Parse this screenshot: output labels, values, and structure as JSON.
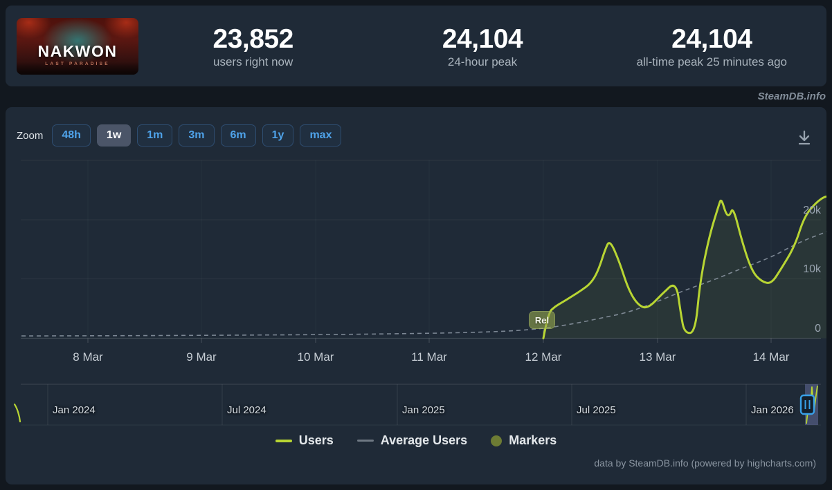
{
  "header": {
    "banner": {
      "title": "NAKWON",
      "subtitle": "LAST PARADISE"
    },
    "stats": [
      {
        "value": "23,852",
        "label": "users right now"
      },
      {
        "value": "24,104",
        "label": "24-hour peak"
      },
      {
        "value": "24,104",
        "label": "all-time peak 25 minutes ago"
      }
    ]
  },
  "watermark": "SteamDB.info",
  "toolbar": {
    "zoom_label": "Zoom",
    "buttons": [
      {
        "label": "48h",
        "active": false
      },
      {
        "label": "1w",
        "active": true
      },
      {
        "label": "1m",
        "active": false
      },
      {
        "label": "3m",
        "active": false
      },
      {
        "label": "6m",
        "active": false
      },
      {
        "label": "1y",
        "active": false
      },
      {
        "label": "max",
        "active": false
      }
    ]
  },
  "chart_data": {
    "type": "line",
    "y_ticks": [
      "0",
      "10k",
      "20k"
    ],
    "ylim": [
      0,
      30000
    ],
    "x_ticks": [
      "8 Mar",
      "9 Mar",
      "10 Mar",
      "11 Mar",
      "12 Mar",
      "13 Mar",
      "14 Mar"
    ],
    "grid": true,
    "legend_position": "bottom",
    "series": [
      {
        "name": "Users",
        "color": "#b8d533",
        "style": "solid",
        "points": [
          {
            "t": "12 Mar 00:00",
            "v": 0
          },
          {
            "t": "12 Mar 01:00",
            "v": 4300
          },
          {
            "t": "12 Mar 02:30",
            "v": 5400
          },
          {
            "t": "12 Mar 04:00",
            "v": 6100
          },
          {
            "t": "12 Mar 06:00",
            "v": 7100
          },
          {
            "t": "12 Mar 08:00",
            "v": 8100
          },
          {
            "t": "12 Mar 10:00",
            "v": 9300
          },
          {
            "t": "12 Mar 11:30",
            "v": 11300
          },
          {
            "t": "12 Mar 13:00",
            "v": 15000
          },
          {
            "t": "12 Mar 14:00",
            "v": 16700
          },
          {
            "t": "12 Mar 16:00",
            "v": 13000
          },
          {
            "t": "12 Mar 18:00",
            "v": 8100
          },
          {
            "t": "12 Mar 20:00",
            "v": 5600
          },
          {
            "t": "12 Mar 22:00",
            "v": 5000
          },
          {
            "t": "13 Mar 01:00",
            "v": 7500
          },
          {
            "t": "13 Mar 04:00",
            "v": 9700
          },
          {
            "t": "13 Mar 05:00",
            "v": 4000
          },
          {
            "t": "13 Mar 05:45",
            "v": 900
          },
          {
            "t": "13 Mar 08:00",
            "v": 900
          },
          {
            "t": "13 Mar 09:00",
            "v": 9500
          },
          {
            "t": "13 Mar 11:00",
            "v": 17400
          },
          {
            "t": "13 Mar 13:00",
            "v": 22600
          },
          {
            "t": "13 Mar 13:30",
            "v": 23700
          },
          {
            "t": "13 Mar 14:30",
            "v": 21000
          },
          {
            "t": "13 Mar 15:15",
            "v": 20700
          },
          {
            "t": "13 Mar 16:00",
            "v": 22300
          },
          {
            "t": "13 Mar 18:00",
            "v": 16000
          },
          {
            "t": "13 Mar 20:00",
            "v": 11300
          },
          {
            "t": "13 Mar 22:00",
            "v": 9600
          },
          {
            "t": "14 Mar 00:00",
            "v": 9200
          },
          {
            "t": "14 Mar 02:00",
            "v": 11600
          },
          {
            "t": "14 Mar 05:00",
            "v": 15600
          },
          {
            "t": "14 Mar 07:00",
            "v": 20600
          },
          {
            "t": "14 Mar 09:30",
            "v": 23000
          },
          {
            "t": "14 Mar 11:30",
            "v": 24104
          },
          {
            "t": "14 Mar 12:40",
            "v": 23852
          }
        ]
      },
      {
        "name": "Average Users",
        "color": "#8d98a4",
        "style": "dashed",
        "points": [
          {
            "t": "7 Mar 10:00",
            "v": 400
          },
          {
            "t": "8 Mar 12:00",
            "v": 450
          },
          {
            "t": "9 Mar 12:00",
            "v": 550
          },
          {
            "t": "10 Mar 12:00",
            "v": 700
          },
          {
            "t": "11 Mar 12:00",
            "v": 1000
          },
          {
            "t": "12 Mar 00:00",
            "v": 1600
          },
          {
            "t": "12 Mar 08:00",
            "v": 2700
          },
          {
            "t": "12 Mar 12:00",
            "v": 3400
          },
          {
            "t": "12 Mar 18:00",
            "v": 4400
          },
          {
            "t": "13 Mar 00:00",
            "v": 6200
          },
          {
            "t": "13 Mar 06:00",
            "v": 8200
          },
          {
            "t": "13 Mar 12:00",
            "v": 9900
          },
          {
            "t": "13 Mar 18:00",
            "v": 11900
          },
          {
            "t": "14 Mar 00:00",
            "v": 13700
          },
          {
            "t": "14 Mar 06:00",
            "v": 16300
          },
          {
            "t": "14 Mar 12:00",
            "v": 18100
          }
        ]
      },
      {
        "name": "Markers",
        "color": "#6d7c34",
        "points": [
          {
            "t": "12 Mar 00:00",
            "label": "Rel"
          }
        ]
      }
    ]
  },
  "marker": {
    "label": "Rel"
  },
  "navigator": {
    "labels": [
      "Jan 2024",
      "Jul 2024",
      "Jan 2025",
      "Jul 2025",
      "Jan 2026"
    ]
  },
  "legend": [
    {
      "label": "Users"
    },
    {
      "label": "Average Users"
    },
    {
      "label": "Markers"
    }
  ],
  "credits": "data by SteamDB.info (powered by highcharts.com)"
}
